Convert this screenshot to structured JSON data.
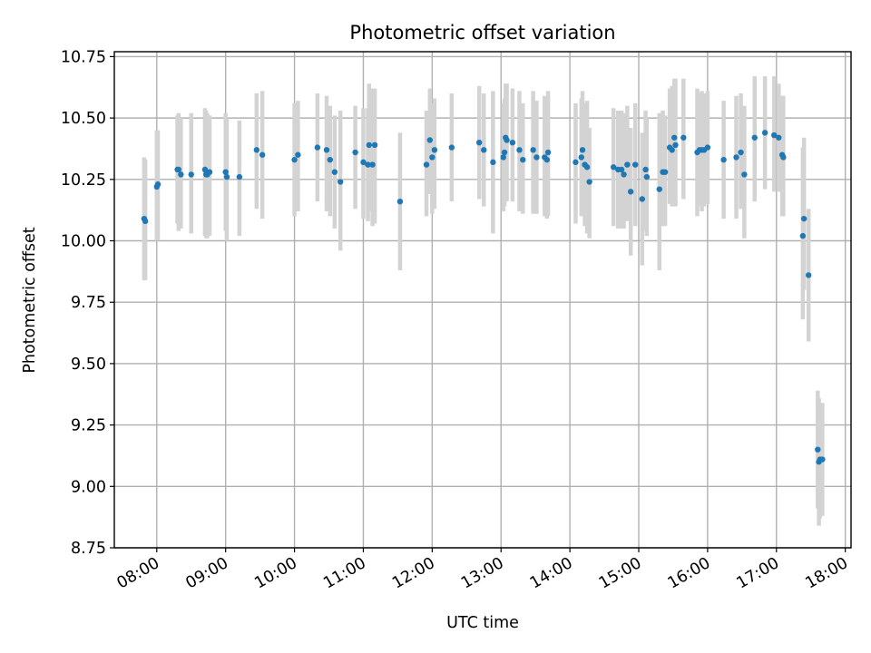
{
  "chart_data": {
    "type": "scatter",
    "title": "Photometric offset variation",
    "xlabel": "UTC time",
    "ylabel": "Photometric offset",
    "x_tick_labels": [
      "08:00",
      "09:00",
      "10:00",
      "11:00",
      "12:00",
      "13:00",
      "14:00",
      "15:00",
      "16:00",
      "17:00",
      "18:00"
    ],
    "y_tick_labels": [
      "8.75",
      "9.00",
      "9.25",
      "9.50",
      "9.75",
      "10.00",
      "10.25",
      "10.50",
      "10.75"
    ],
    "xlim": [
      "07:23",
      "18:05"
    ],
    "ylim": [
      8.75,
      10.77
    ],
    "grid": true,
    "colors": {
      "point": "#1f77b4",
      "errorbar": "#d3d3d3"
    },
    "series": [
      {
        "x": [
          "07:49",
          "07:50",
          "08:00",
          "08:01",
          "08:18",
          "08:19",
          "08:21",
          "08:30",
          "08:42",
          "08:43",
          "08:44",
          "08:46",
          "09:00",
          "09:01",
          "09:12",
          "09:27",
          "09:32",
          "10:00",
          "10:03",
          "10:20",
          "10:28",
          "10:31",
          "10:35",
          "10:40",
          "10:53",
          "11:00",
          "11:04",
          "11:05",
          "11:08",
          "11:10",
          "11:32",
          "11:55",
          "11:58",
          "12:00",
          "12:02",
          "12:17",
          "12:41",
          "12:45",
          "12:53",
          "13:02",
          "13:03",
          "13:04",
          "13:05",
          "13:10",
          "13:16",
          "13:19",
          "13:28",
          "13:31",
          "13:38",
          "13:40",
          "13:41",
          "14:05",
          "14:10",
          "14:11",
          "14:13",
          "14:15",
          "14:17",
          "14:38",
          "14:42",
          "14:45",
          "14:47",
          "14:50",
          "14:53",
          "14:57",
          "15:03",
          "15:06",
          "15:07",
          "15:18",
          "15:21",
          "15:23",
          "15:27",
          "15:29",
          "15:31",
          "15:32",
          "15:39",
          "15:51",
          "15:53",
          "15:55",
          "15:57",
          "16:00",
          "16:14",
          "16:25",
          "16:29",
          "16:32",
          "16:41",
          "16:50",
          "16:58",
          "17:02",
          "17:05",
          "17:06",
          "17:23",
          "17:24",
          "17:28",
          "17:36",
          "17:37",
          "17:38",
          "17:40"
        ],
        "y": [
          10.09,
          10.08,
          10.22,
          10.23,
          10.29,
          10.29,
          10.27,
          10.27,
          10.29,
          10.27,
          10.27,
          10.28,
          10.28,
          10.26,
          10.26,
          10.37,
          10.35,
          10.33,
          10.35,
          10.38,
          10.37,
          10.33,
          10.28,
          10.24,
          10.36,
          10.32,
          10.31,
          10.39,
          10.31,
          10.39,
          10.16,
          10.31,
          10.41,
          10.34,
          10.37,
          10.38,
          10.4,
          10.37,
          10.32,
          10.34,
          10.36,
          10.42,
          10.41,
          10.4,
          10.37,
          10.33,
          10.37,
          10.34,
          10.34,
          10.33,
          10.36,
          10.32,
          10.34,
          10.37,
          10.31,
          10.3,
          10.24,
          10.3,
          10.29,
          10.29,
          10.27,
          10.31,
          10.2,
          10.31,
          10.17,
          10.29,
          10.26,
          10.21,
          10.28,
          10.28,
          10.38,
          10.37,
          10.42,
          10.39,
          10.42,
          10.36,
          10.37,
          10.37,
          10.37,
          10.38,
          10.33,
          10.34,
          10.36,
          10.27,
          10.42,
          10.44,
          10.43,
          10.42,
          10.35,
          10.34,
          10.02,
          10.09,
          9.86,
          9.15,
          9.1,
          9.11,
          9.11
        ],
        "yerr_low": [
          9.84,
          9.84,
          10.0,
          10.0,
          10.07,
          10.04,
          10.05,
          10.03,
          10.02,
          10.01,
          10.01,
          10.02,
          10.04,
          10.0,
          10.02,
          10.13,
          10.09,
          10.1,
          10.12,
          10.16,
          10.12,
          10.1,
          10.05,
          9.96,
          10.13,
          10.09,
          10.08,
          10.12,
          10.06,
          10.07,
          9.88,
          10.1,
          10.19,
          10.11,
          10.13,
          10.16,
          10.17,
          10.14,
          10.03,
          10.12,
          10.14,
          10.18,
          10.16,
          10.16,
          10.12,
          10.11,
          10.11,
          10.11,
          10.1,
          10.09,
          10.1,
          10.07,
          10.1,
          10.12,
          10.06,
          10.03,
          10.01,
          10.06,
          10.05,
          10.05,
          10.05,
          10.08,
          9.94,
          10.06,
          9.9,
          10.04,
          10.02,
          9.88,
          10.06,
          10.06,
          10.15,
          10.14,
          10.18,
          10.14,
          10.17,
          10.1,
          10.14,
          10.12,
          10.14,
          10.15,
          10.09,
          10.09,
          10.13,
          10.01,
          10.16,
          10.21,
          10.2,
          10.2,
          10.1,
          10.1,
          9.68,
          9.8,
          9.59,
          8.91,
          8.84,
          8.87,
          8.88
        ],
        "yerr_high": [
          10.34,
          10.33,
          10.45,
          10.45,
          10.51,
          10.52,
          10.5,
          10.52,
          10.54,
          10.53,
          10.52,
          10.51,
          10.52,
          10.5,
          10.49,
          10.6,
          10.61,
          10.56,
          10.57,
          10.6,
          10.59,
          10.55,
          10.51,
          10.53,
          10.55,
          10.54,
          10.54,
          10.64,
          10.62,
          10.62,
          10.44,
          10.53,
          10.62,
          10.56,
          10.58,
          10.6,
          10.63,
          10.6,
          10.61,
          10.56,
          10.58,
          10.64,
          10.64,
          10.62,
          10.61,
          10.56,
          10.61,
          10.57,
          10.59,
          10.57,
          10.61,
          10.56,
          10.58,
          10.61,
          10.56,
          10.57,
          10.46,
          10.54,
          10.53,
          10.53,
          10.52,
          10.55,
          10.46,
          10.56,
          10.44,
          10.53,
          10.5,
          10.52,
          10.53,
          10.51,
          10.62,
          10.63,
          10.66,
          10.66,
          10.66,
          10.62,
          10.6,
          10.61,
          10.6,
          10.61,
          10.57,
          10.59,
          10.6,
          10.55,
          10.67,
          10.67,
          10.67,
          10.64,
          10.59,
          10.59,
          10.38,
          10.42,
          10.13,
          9.39,
          9.36,
          9.34,
          9.34
        ]
      }
    ]
  }
}
